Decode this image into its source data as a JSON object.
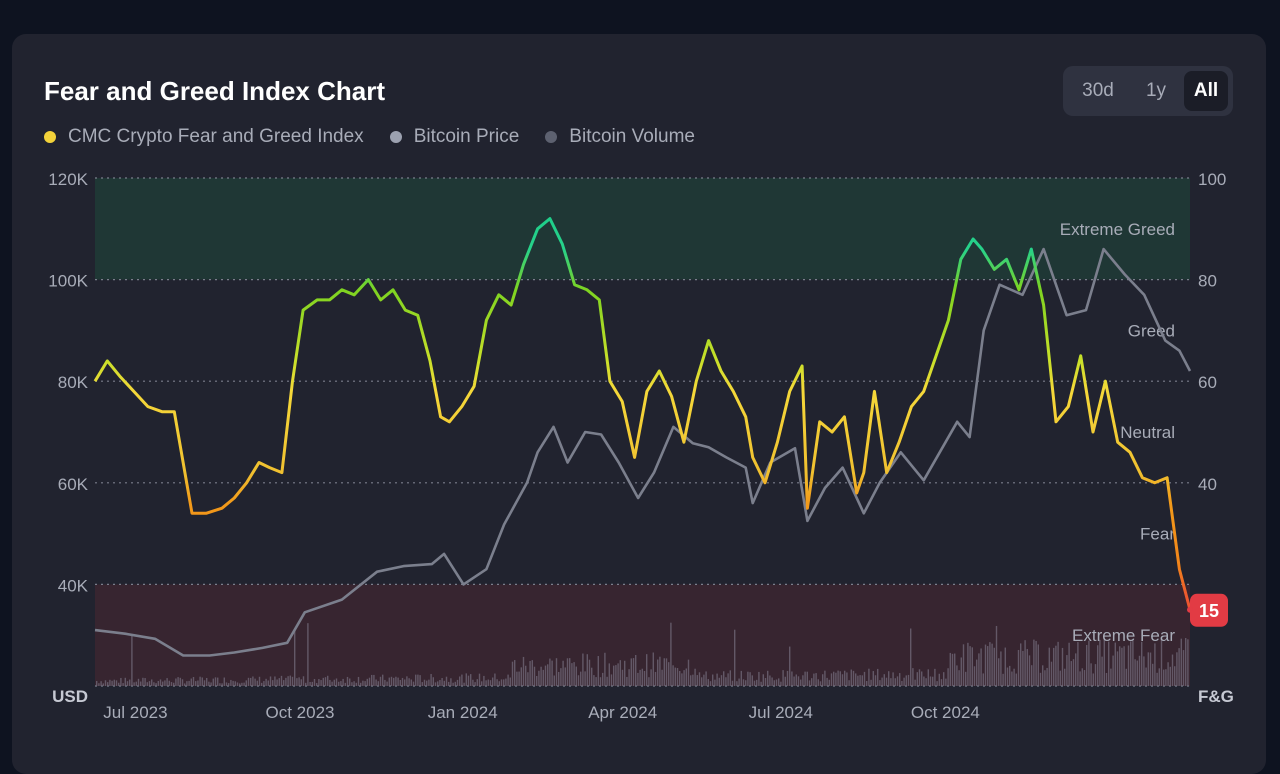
{
  "chart_data": {
    "type": "line",
    "title": "Fear and Greed Index Chart",
    "legend": [
      {
        "name": "CMC Crypto Fear and Greed Index",
        "color": "#f3d23a"
      },
      {
        "name": "Bitcoin Price",
        "color": "#9ca1b0"
      },
      {
        "name": "Bitcoin Volume",
        "color": "#5d6170"
      }
    ],
    "legend_position": "top-left",
    "range_buttons": [
      {
        "label": "30d",
        "active": false
      },
      {
        "label": "1y",
        "active": false
      },
      {
        "label": "All",
        "active": true
      }
    ],
    "left_axis": {
      "unit_label": "USD",
      "ticks": [
        "120K",
        "100K",
        "80K",
        "60K",
        "40K"
      ],
      "range": [
        20000,
        120000
      ]
    },
    "right_axis": {
      "unit_label": "F&G",
      "ticks": [
        "100",
        "80",
        "60",
        "40"
      ],
      "range": [
        0,
        100
      ]
    },
    "x_axis": {
      "ticks": [
        "Jul 2023",
        "Oct 2023",
        "Jan 2024",
        "Apr 2024",
        "Jul 2024",
        "Oct 2024"
      ],
      "tick_dates": [
        "2023-07-01",
        "2023-10-01",
        "2024-01-01",
        "2024-04-01",
        "2024-07-01",
        "2024-10-01"
      ],
      "range": [
        "2023-06-28",
        "2025-03-10"
      ]
    },
    "grid": true,
    "zones": [
      {
        "label": "Extreme Greed",
        "from": 80,
        "to": 100,
        "color": "#1f3a36"
      },
      {
        "label": "Greed",
        "from": 60,
        "to": 80
      },
      {
        "label": "Neutral",
        "from": 40,
        "to": 60
      },
      {
        "label": "Fear",
        "from": 20,
        "to": 40
      },
      {
        "label": "Extreme Fear",
        "from": 0,
        "to": 20,
        "color": "#3a2631"
      }
    ],
    "current_value": "15",
    "fear_greed_series": {
      "name": "CMC Crypto Fear and Greed Index",
      "dates": [
        "2023-06-28",
        "2023-07-05",
        "2023-07-12",
        "2023-07-20",
        "2023-07-28",
        "2023-08-05",
        "2023-08-12",
        "2023-08-18",
        "2023-08-22",
        "2023-08-30",
        "2023-09-08",
        "2023-09-15",
        "2023-09-22",
        "2023-09-29",
        "2023-10-05",
        "2023-10-12",
        "2023-10-18",
        "2023-10-24",
        "2023-11-01",
        "2023-11-08",
        "2023-11-15",
        "2023-11-22",
        "2023-11-30",
        "2023-12-07",
        "2023-12-14",
        "2023-12-21",
        "2023-12-28",
        "2024-01-04",
        "2024-01-10",
        "2024-01-15",
        "2024-01-22",
        "2024-01-29",
        "2024-02-05",
        "2024-02-12",
        "2024-02-19",
        "2024-02-26",
        "2024-03-05",
        "2024-03-12",
        "2024-03-19",
        "2024-03-26",
        "2024-04-02",
        "2024-04-09",
        "2024-04-15",
        "2024-04-22",
        "2024-04-29",
        "2024-05-06",
        "2024-05-13",
        "2024-05-20",
        "2024-05-27",
        "2024-06-03",
        "2024-06-10",
        "2024-06-17",
        "2024-06-24",
        "2024-07-01",
        "2024-07-05",
        "2024-07-12",
        "2024-07-19",
        "2024-07-26",
        "2024-08-02",
        "2024-08-05",
        "2024-08-12",
        "2024-08-19",
        "2024-08-26",
        "2024-09-02",
        "2024-09-06",
        "2024-09-12",
        "2024-09-19",
        "2024-09-26",
        "2024-10-03",
        "2024-10-10",
        "2024-10-17",
        "2024-10-24",
        "2024-10-31",
        "2024-11-07",
        "2024-11-12",
        "2024-11-19",
        "2024-11-26",
        "2024-12-03",
        "2024-12-10",
        "2024-12-17",
        "2024-12-24",
        "2024-12-31",
        "2025-01-07",
        "2025-01-14",
        "2025-01-21",
        "2025-01-28",
        "2025-02-04",
        "2025-02-11",
        "2025-02-18",
        "2025-02-25",
        "2025-03-04",
        "2025-03-10"
      ],
      "values": [
        60,
        64,
        61,
        58,
        55,
        54,
        54,
        42,
        34,
        34,
        35,
        37,
        40,
        44,
        43,
        42,
        60,
        74,
        76,
        76,
        78,
        77,
        80,
        76,
        78,
        74,
        73,
        64,
        53,
        52,
        55,
        59,
        72,
        77,
        75,
        83,
        90,
        92,
        87,
        79,
        78,
        76,
        60,
        56,
        45,
        58,
        62,
        57,
        48,
        60,
        68,
        62,
        58,
        53,
        45,
        40,
        48,
        58,
        63,
        35,
        52,
        50,
        53,
        38,
        42,
        58,
        42,
        48,
        55,
        58,
        65,
        72,
        84,
        88,
        86,
        82,
        84,
        78,
        86,
        75,
        52,
        55,
        65,
        50,
        60,
        48,
        46,
        41,
        40,
        41,
        23,
        15
      ]
    },
    "price_series": {
      "name": "Bitcoin Price",
      "dates": [
        "2023-06-28",
        "2023-07-15",
        "2023-08-01",
        "2023-08-17",
        "2023-09-01",
        "2023-09-15",
        "2023-10-01",
        "2023-10-15",
        "2023-10-25",
        "2023-11-15",
        "2023-12-05",
        "2023-12-20",
        "2024-01-05",
        "2024-01-12",
        "2024-01-23",
        "2024-02-05",
        "2024-02-15",
        "2024-02-28",
        "2024-03-05",
        "2024-03-14",
        "2024-03-22",
        "2024-04-01",
        "2024-04-10",
        "2024-04-20",
        "2024-05-01",
        "2024-05-10",
        "2024-05-21",
        "2024-06-01",
        "2024-06-10",
        "2024-06-20",
        "2024-07-01",
        "2024-07-05",
        "2024-07-15",
        "2024-07-29",
        "2024-08-05",
        "2024-08-15",
        "2024-08-25",
        "2024-09-06",
        "2024-09-15",
        "2024-09-27",
        "2024-10-10",
        "2024-10-29",
        "2024-11-05",
        "2024-11-13",
        "2024-11-22",
        "2024-12-05",
        "2024-12-17",
        "2024-12-30",
        "2025-01-10",
        "2025-01-20",
        "2025-02-01",
        "2025-02-12",
        "2025-02-24",
        "2025-03-04",
        "2025-03-10"
      ],
      "values": [
        31000,
        30300,
        29300,
        26000,
        26000,
        26600,
        27500,
        28500,
        34500,
        37000,
        42500,
        43600,
        44000,
        46000,
        40000,
        43000,
        51800,
        60000,
        66000,
        71000,
        64000,
        70000,
        69500,
        64000,
        57000,
        62000,
        71000,
        67800,
        67000,
        65000,
        63000,
        56000,
        64000,
        66800,
        52500,
        59000,
        63000,
        54000,
        60000,
        66000,
        60500,
        72000,
        69000,
        90000,
        99000,
        97000,
        106000,
        93000,
        94000,
        106000,
        101000,
        97000,
        88000,
        86000,
        82000
      ]
    },
    "volume_note": "Bitcoin Volume shown as bars along the bottom (Extreme Fear band)"
  }
}
